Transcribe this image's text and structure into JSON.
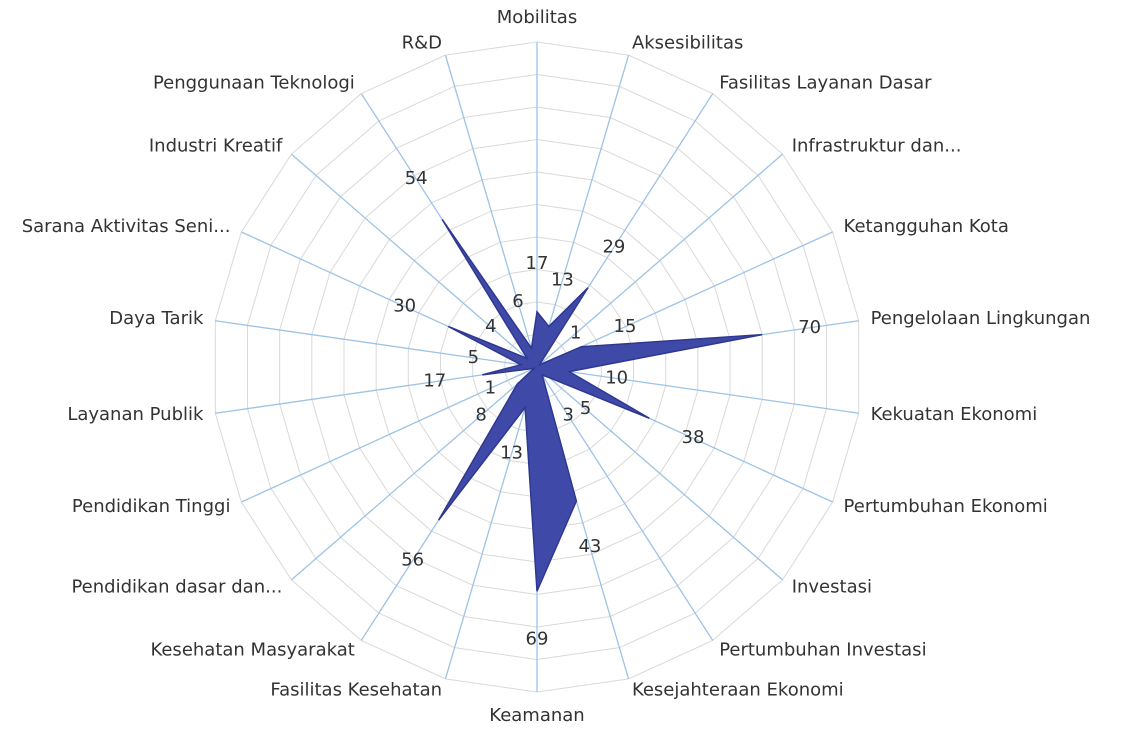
{
  "chart_data": {
    "type": "radar",
    "categories": [
      "Mobilitas",
      "Aksesibilitas",
      "Fasilitas Layanan Dasar",
      "Infrastruktur dan...",
      "Ketangguhan Kota",
      "Pengelolaan Lingkungan",
      "Kekuatan Ekonomi",
      "Pertumbuhan Ekonomi",
      "Investasi",
      "Pertumbuhan Investasi",
      "Kesejahteraan Ekonomi",
      "Keamanan",
      "Fasilitas Kesehatan",
      "Kesehatan Masyarakat",
      "Pendidikan dasar dan...",
      "Pendidikan Tinggi",
      "Layanan Publik",
      "Daya Tarik",
      "Sarana Aktivitas Seni...",
      "Industri Kreatif",
      "Penggunaan Teknologi",
      "R&D"
    ],
    "values": [
      17,
      13,
      29,
      1,
      15,
      70,
      10,
      38,
      5,
      3,
      43,
      69,
      13,
      56,
      8,
      1,
      17,
      5,
      30,
      4,
      54,
      6
    ],
    "color": "#3f4aa8",
    "rlim": [
      0,
      100
    ],
    "rticks": [
      0,
      10,
      20,
      30,
      40,
      50,
      60,
      70,
      80,
      90,
      100
    ],
    "grid": true
  }
}
